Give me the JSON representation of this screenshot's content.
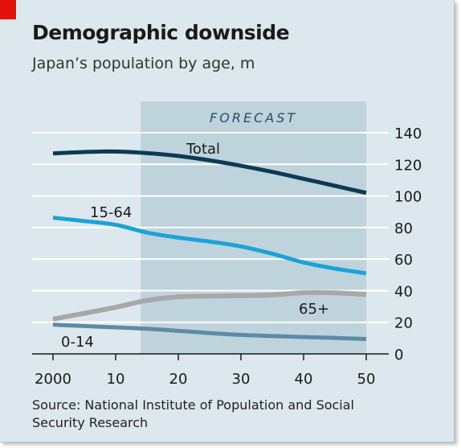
{
  "header": {
    "title": "Demographic downside",
    "subtitle": "Japan’s population by age, m"
  },
  "footer": {
    "source": "Source: National Institute of Population and Social Security Research"
  },
  "forecast_label": "FORECAST",
  "colors": {
    "background": "#dde7ee",
    "forecast_band": "#bfd3dd",
    "accent": "#e3120b",
    "total": "#0b3b55",
    "age_15_64": "#1ba3d8",
    "age_65_plus": "#a8a8a8",
    "age_0_14": "#5b8ba6"
  },
  "chart_data": {
    "type": "line",
    "title": "Demographic downside",
    "subtitle": "Japan’s population by age, m",
    "xlabel": "",
    "ylabel": "",
    "xlim": [
      2000,
      2050
    ],
    "ylim": [
      0,
      140
    ],
    "x_ticks": [
      2000,
      2010,
      2020,
      2030,
      2040,
      2050
    ],
    "x_tick_labels": [
      "2000",
      "10",
      "20",
      "30",
      "40",
      "50"
    ],
    "y_ticks": [
      0,
      20,
      40,
      60,
      80,
      100,
      120,
      140
    ],
    "y_tick_labels": [
      "0",
      "20",
      "40",
      "60",
      "80",
      "100",
      "120",
      "140"
    ],
    "forecast_range": [
      2014,
      2050
    ],
    "grid": true,
    "series": [
      {
        "name": "Total",
        "color": "#0b3b55",
        "x": [
          2000,
          2005,
          2010,
          2015,
          2020,
          2025,
          2030,
          2035,
          2040,
          2045,
          2050
        ],
        "values": [
          126.9,
          127.8,
          128.1,
          127.1,
          125.3,
          122.5,
          119.1,
          115.2,
          110.8,
          106.4,
          101.9
        ]
      },
      {
        "name": "15-64",
        "color": "#1ba3d8",
        "x": [
          2000,
          2005,
          2010,
          2015,
          2020,
          2025,
          2030,
          2035,
          2040,
          2045,
          2050
        ],
        "values": [
          86.2,
          84.1,
          81.7,
          76.8,
          73.6,
          71.1,
          68.0,
          63.4,
          57.9,
          54.0,
          51.0
        ]
      },
      {
        "name": "65+",
        "color": "#a8a8a8",
        "x": [
          2000,
          2005,
          2010,
          2015,
          2020,
          2025,
          2030,
          2035,
          2040,
          2045,
          2050
        ],
        "values": [
          22.0,
          25.7,
          29.5,
          33.9,
          36.1,
          36.6,
          36.9,
          37.3,
          38.7,
          38.6,
          37.6
        ]
      },
      {
        "name": "0-14",
        "color": "#5b8ba6",
        "x": [
          2000,
          2005,
          2010,
          2015,
          2020,
          2025,
          2030,
          2035,
          2040,
          2045,
          2050
        ],
        "values": [
          18.5,
          17.6,
          16.8,
          15.9,
          14.6,
          13.2,
          12.0,
          11.3,
          10.7,
          10.1,
          9.4
        ]
      }
    ]
  }
}
